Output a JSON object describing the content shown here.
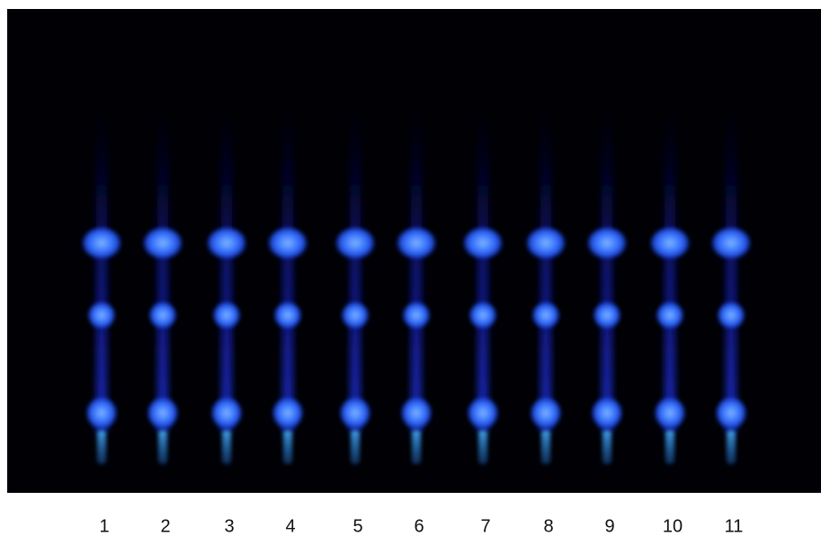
{
  "lanes": [
    "1",
    "2",
    "3",
    "4",
    "5",
    "6",
    "7",
    "8",
    "9",
    "10",
    "11"
  ]
}
